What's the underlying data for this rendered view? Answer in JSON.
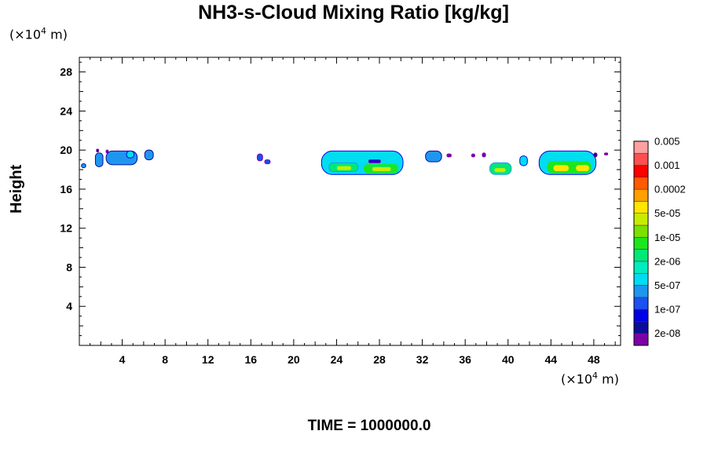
{
  "chart_data": {
    "type": "heatmap",
    "title": "NH3-s-Cloud Mixing Ratio [kg/kg]",
    "xunit": "(×10",
    "yunit": "(×10",
    "unit_exp": "4",
    "unit_suffix": " m)",
    "ylabel": "Height",
    "xlim": [
      0,
      50.5
    ],
    "ylim": [
      0,
      29.5
    ],
    "xticks": [
      4,
      8,
      12,
      16,
      20,
      24,
      28,
      32,
      36,
      40,
      44,
      48
    ],
    "yticks": [
      4,
      8,
      12,
      16,
      20,
      24,
      28
    ],
    "grid": false,
    "legend_position": "right",
    "colorbar": {
      "colors": [
        "#7b00a6",
        "#0c0c9a",
        "#0000e6",
        "#1c50f0",
        "#1e96f0",
        "#00dcf0",
        "#00ecc0",
        "#00e878",
        "#1ee61e",
        "#7ce000",
        "#c8ec00",
        "#ffe600",
        "#ffa000",
        "#ff5a00",
        "#ff0000",
        "#ff5050",
        "#ffa0a0"
      ],
      "labels": [
        "2e-08",
        "1e-07",
        "5e-07",
        "2e-06",
        "1e-05",
        "5e-05",
        "0.0002",
        "0.001",
        "0.005"
      ]
    },
    "clouds": [
      {
        "x": 0.2,
        "y": 18.2,
        "w": 0.4,
        "h": 0.4,
        "level": 4
      },
      {
        "x": 1.6,
        "y": 19.8,
        "w": 0.2,
        "h": 0.3,
        "level": 1
      },
      {
        "x": 1.5,
        "y": 18.3,
        "w": 0.7,
        "h": 1.4,
        "level": 4
      },
      {
        "x": 2.5,
        "y": 19.7,
        "w": 0.2,
        "h": 0.3,
        "level": 0
      },
      {
        "x": 2.5,
        "y": 18.5,
        "w": 2.9,
        "h": 1.4,
        "level": 4
      },
      {
        "x": 4.4,
        "y": 19.2,
        "w": 0.7,
        "h": 0.7,
        "level": 5
      },
      {
        "x": 6.1,
        "y": 19.0,
        "w": 0.8,
        "h": 1.0,
        "level": 4
      },
      {
        "x": 16.6,
        "y": 18.9,
        "w": 0.5,
        "h": 0.7,
        "level": 3
      },
      {
        "x": 17.3,
        "y": 18.6,
        "w": 0.5,
        "h": 0.4,
        "level": 3
      },
      {
        "x": 22.6,
        "y": 17.5,
        "w": 7.6,
        "h": 2.4,
        "level": 5
      },
      {
        "x": 23.3,
        "y": 17.8,
        "w": 2.7,
        "h": 0.9,
        "level": 7
      },
      {
        "x": 24.0,
        "y": 17.9,
        "w": 1.4,
        "h": 0.5,
        "level": 10
      },
      {
        "x": 26.5,
        "y": 17.6,
        "w": 3.3,
        "h": 1.0,
        "level": 8
      },
      {
        "x": 27.3,
        "y": 17.8,
        "w": 1.8,
        "h": 0.5,
        "level": 10
      },
      {
        "x": 27.0,
        "y": 18.7,
        "w": 1.1,
        "h": 0.3,
        "level": 2
      },
      {
        "x": 32.3,
        "y": 18.8,
        "w": 1.5,
        "h": 1.1,
        "level": 4
      },
      {
        "x": 34.3,
        "y": 19.3,
        "w": 0.4,
        "h": 0.3,
        "level": 0
      },
      {
        "x": 36.6,
        "y": 19.3,
        "w": 0.3,
        "h": 0.3,
        "level": 0
      },
      {
        "x": 37.6,
        "y": 19.3,
        "w": 0.3,
        "h": 0.4,
        "level": 0
      },
      {
        "x": 38.3,
        "y": 17.5,
        "w": 2.0,
        "h": 1.2,
        "level": 7
      },
      {
        "x": 38.7,
        "y": 17.7,
        "w": 1.1,
        "h": 0.5,
        "level": 10
      },
      {
        "x": 41.1,
        "y": 18.4,
        "w": 0.7,
        "h": 1.0,
        "level": 5
      },
      {
        "x": 42.9,
        "y": 17.5,
        "w": 5.3,
        "h": 2.4,
        "level": 5
      },
      {
        "x": 43.6,
        "y": 17.6,
        "w": 4.2,
        "h": 1.3,
        "level": 8
      },
      {
        "x": 44.2,
        "y": 17.8,
        "w": 1.5,
        "h": 0.7,
        "level": 11
      },
      {
        "x": 46.3,
        "y": 17.8,
        "w": 1.3,
        "h": 0.7,
        "level": 11
      },
      {
        "x": 48.0,
        "y": 19.3,
        "w": 0.3,
        "h": 0.4,
        "level": 1
      },
      {
        "x": 49.0,
        "y": 19.5,
        "w": 0.3,
        "h": 0.2,
        "level": 0
      }
    ]
  },
  "footer": {
    "time_label": "TIME = 1000000.0"
  }
}
